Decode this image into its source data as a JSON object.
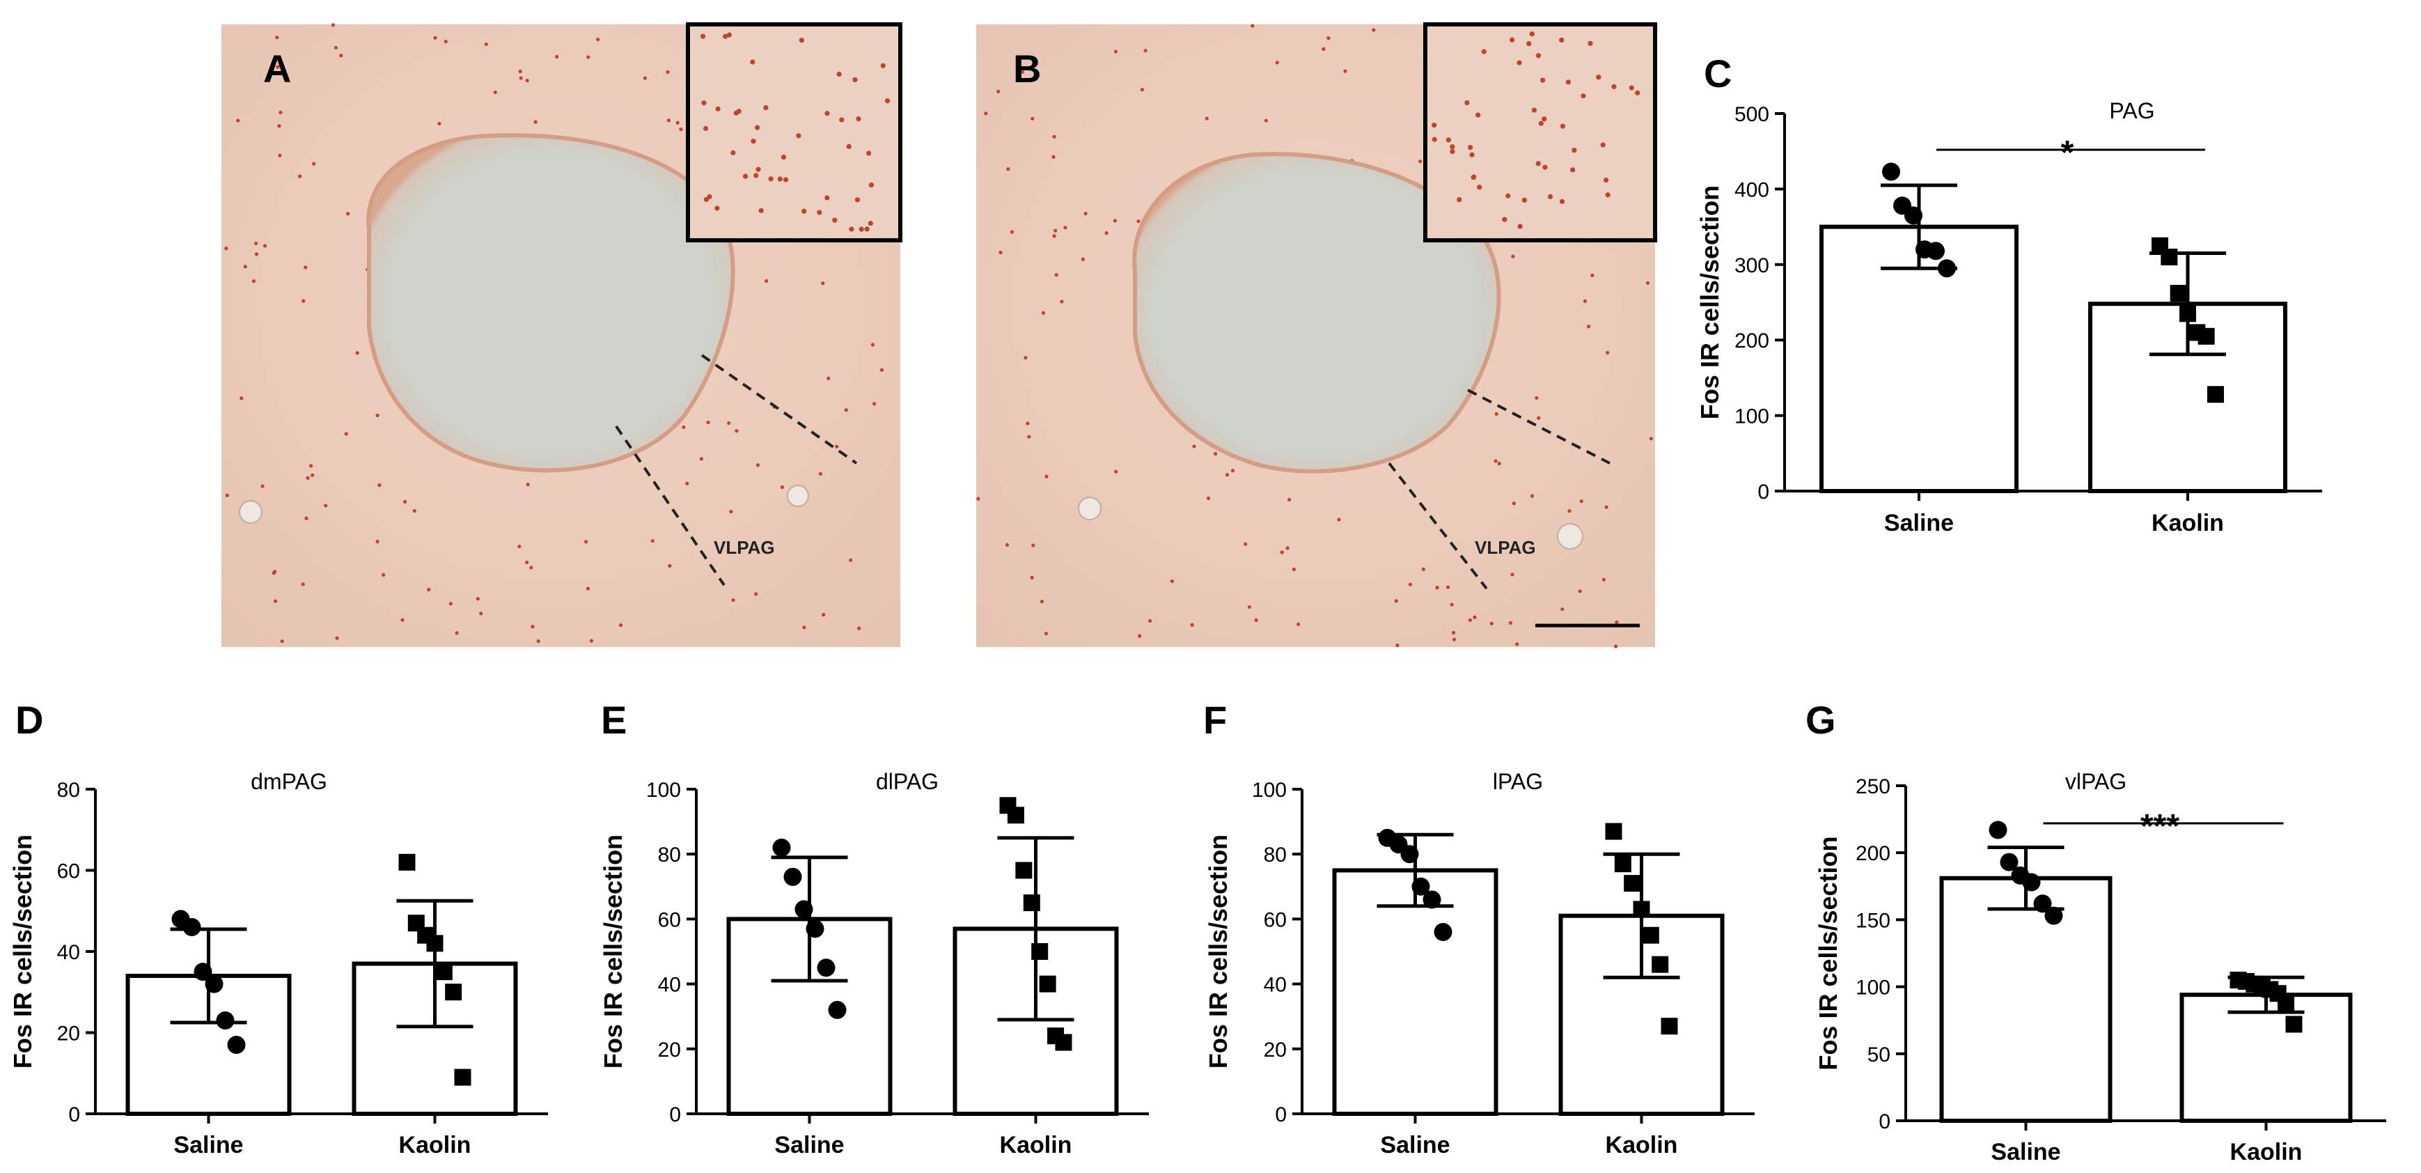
{
  "micrographs": [
    {
      "letter": "A",
      "region_label": "VLPAG"
    },
    {
      "letter": "B",
      "region_label": "VLPAG"
    }
  ],
  "colors": {
    "tissue": "#ecc9b8",
    "lesion": "#cdd2cb",
    "stain_dot": "#c0442a",
    "bar_fill": "#ffffff",
    "ink": "#000000"
  },
  "chart_data": [
    {
      "panel": "C",
      "type": "bar",
      "title": "PAG",
      "ylabel": "Fos IR cells/section",
      "xlabel": "",
      "categories": [
        "Saline",
        "Kaolin"
      ],
      "ylim": [
        0,
        500
      ],
      "yticks": [
        0,
        100,
        200,
        300,
        400,
        500
      ],
      "means": [
        350,
        248
      ],
      "sd": [
        55,
        67
      ],
      "points": [
        [
          423,
          378,
          365,
          320,
          318,
          295
        ],
        [
          325,
          310,
          262,
          235,
          210,
          205,
          128
        ]
      ],
      "markers": [
        "circle",
        "square"
      ],
      "significance": {
        "text": "*",
        "from": "Saline",
        "to": "Kaolin"
      },
      "grid": false
    },
    {
      "panel": "D",
      "type": "bar",
      "title": "dmPAG",
      "ylabel": "Fos IR cells/section",
      "xlabel": "",
      "categories": [
        "Saline",
        "Kaolin"
      ],
      "ylim": [
        0,
        80
      ],
      "yticks": [
        0,
        20,
        40,
        60,
        80
      ],
      "means": [
        34,
        37
      ],
      "sd": [
        11.5,
        15.5
      ],
      "points": [
        [
          48,
          46,
          35,
          32,
          23,
          17
        ],
        [
          62,
          47,
          44,
          42,
          35,
          30,
          9
        ]
      ],
      "markers": [
        "circle",
        "square"
      ],
      "significance": null,
      "grid": false
    },
    {
      "panel": "E",
      "type": "bar",
      "title": "dlPAG",
      "ylabel": "Fos IR cells/section",
      "xlabel": "",
      "categories": [
        "Saline",
        "Kaolin"
      ],
      "ylim": [
        0,
        100
      ],
      "yticks": [
        0,
        20,
        40,
        60,
        80,
        100
      ],
      "means": [
        60,
        57
      ],
      "sd": [
        19,
        28
      ],
      "points": [
        [
          82,
          73,
          63,
          57,
          45,
          32
        ],
        [
          95,
          92,
          75,
          65,
          50,
          40,
          24,
          22
        ]
      ],
      "markers": [
        "circle",
        "square"
      ],
      "significance": null,
      "grid": false
    },
    {
      "panel": "F",
      "type": "bar",
      "title": "lPAG",
      "ylabel": "Fos IR cells/section",
      "xlabel": "",
      "categories": [
        "Saline",
        "Kaolin"
      ],
      "ylim": [
        0,
        100
      ],
      "yticks": [
        0,
        20,
        40,
        60,
        80,
        100
      ],
      "means": [
        75,
        61
      ],
      "sd": [
        11,
        19
      ],
      "points": [
        [
          85,
          83,
          80,
          70,
          66,
          56
        ],
        [
          87,
          77,
          71,
          63,
          55,
          46,
          27
        ]
      ],
      "markers": [
        "circle",
        "square"
      ],
      "significance": null,
      "grid": false
    },
    {
      "panel": "G",
      "type": "bar",
      "title": "vlPAG",
      "ylabel": "Fos IR cells/section",
      "xlabel": "",
      "categories": [
        "Saline",
        "Kaolin"
      ],
      "ylim": [
        0,
        250
      ],
      "yticks": [
        0,
        50,
        100,
        150,
        200,
        250
      ],
      "means": [
        181,
        94
      ],
      "sd": [
        23,
        13
      ],
      "points": [
        [
          217,
          193,
          183,
          178,
          162,
          153
        ],
        [
          105,
          104,
          102,
          100,
          98,
          95,
          88,
          72
        ]
      ],
      "markers": [
        "circle",
        "square"
      ],
      "significance": {
        "text": "***",
        "from": "Saline",
        "to": "Kaolin"
      },
      "grid": false
    }
  ]
}
